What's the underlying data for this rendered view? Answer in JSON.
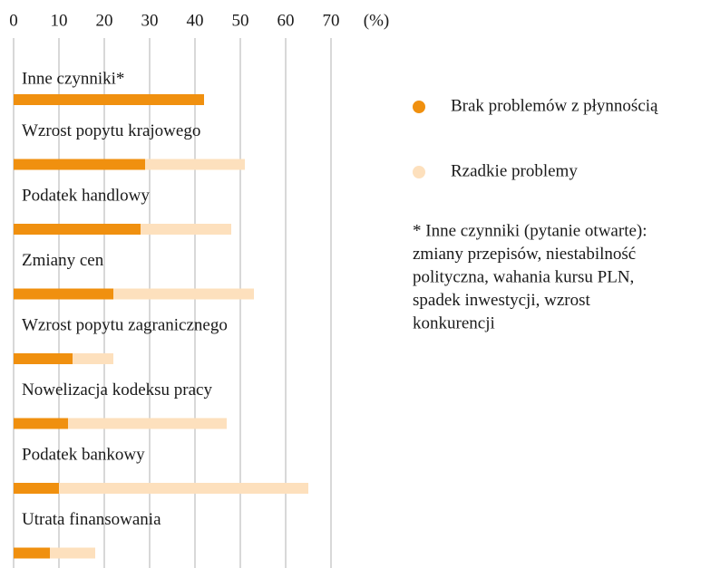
{
  "chart_data": {
    "type": "bar",
    "orientation": "horizontal",
    "categories": [
      "Inne czynniki*",
      "Wzrost popytu krajowego",
      "Podatek handlowy",
      "Zmiany cen",
      "Wzrost popytu zagranicznego",
      "Nowelizacja kodeksu pracy",
      "Podatek bankowy",
      "Utrata finansowania"
    ],
    "series": [
      {
        "name": "Brak problemów z płynnością",
        "color": "#f0900f",
        "values": [
          42,
          29,
          28,
          22,
          13,
          12,
          10,
          8
        ]
      },
      {
        "name": "Rzadkie problemy",
        "color": "#fde0bd",
        "values": [
          null,
          51,
          48,
          53,
          22,
          47,
          65,
          18
        ]
      }
    ],
    "xlabel": "(%)",
    "xlim": [
      0,
      70
    ],
    "xticks": [
      0,
      10,
      20,
      30,
      40,
      50,
      60,
      70
    ],
    "grid": true,
    "note": [
      "* Inne czynniki (pytanie otwarte):",
      "zmiany przepisów, niestabilność",
      "polityczna, wahania kursu PLN,",
      "spadek inwestycji, wzrost",
      "konkurencji"
    ]
  }
}
